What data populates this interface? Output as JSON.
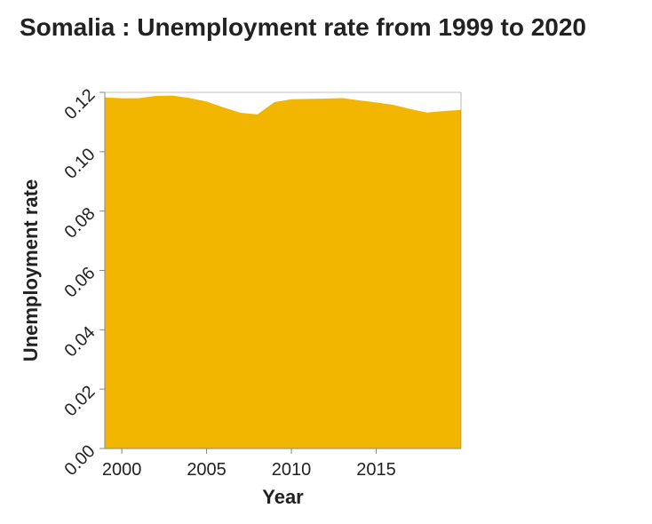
{
  "chart_data": {
    "type": "area",
    "title": "Somalia : Unemployment rate from 1999 to 2020",
    "xlabel": "Year",
    "ylabel": "Unemployment rate",
    "x": [
      1999,
      2000,
      2001,
      2002,
      2003,
      2004,
      2005,
      2006,
      2007,
      2008,
      2009,
      2010,
      2011,
      2012,
      2013,
      2014,
      2015,
      2016,
      2017,
      2018,
      2019,
      2020
    ],
    "values": [
      0.1183,
      0.118,
      0.118,
      0.1188,
      0.1189,
      0.1181,
      0.1169,
      0.1149,
      0.1131,
      0.1126,
      0.1167,
      0.1177,
      0.1178,
      0.1179,
      0.1181,
      0.1173,
      0.1166,
      0.1158,
      0.1144,
      0.1132,
      0.1137,
      0.1141
    ],
    "xlim": [
      1999,
      2020
    ],
    "ylim": [
      0,
      0.12
    ],
    "x_ticks": [
      2000,
      2005,
      2010,
      2015
    ],
    "x_tick_labels": [
      "2000",
      "2005",
      "2010",
      "2015"
    ],
    "y_ticks": [
      0,
      0.02,
      0.04,
      0.06,
      0.08,
      0.1,
      0.12
    ],
    "y_tick_labels": [
      "0.00",
      "0.02",
      "0.04",
      "0.06",
      "0.08",
      "0.10",
      "0.12"
    ],
    "grid": false,
    "colors": {
      "fill": "#f2b600",
      "axis": "#888888",
      "text": "#222222"
    }
  }
}
